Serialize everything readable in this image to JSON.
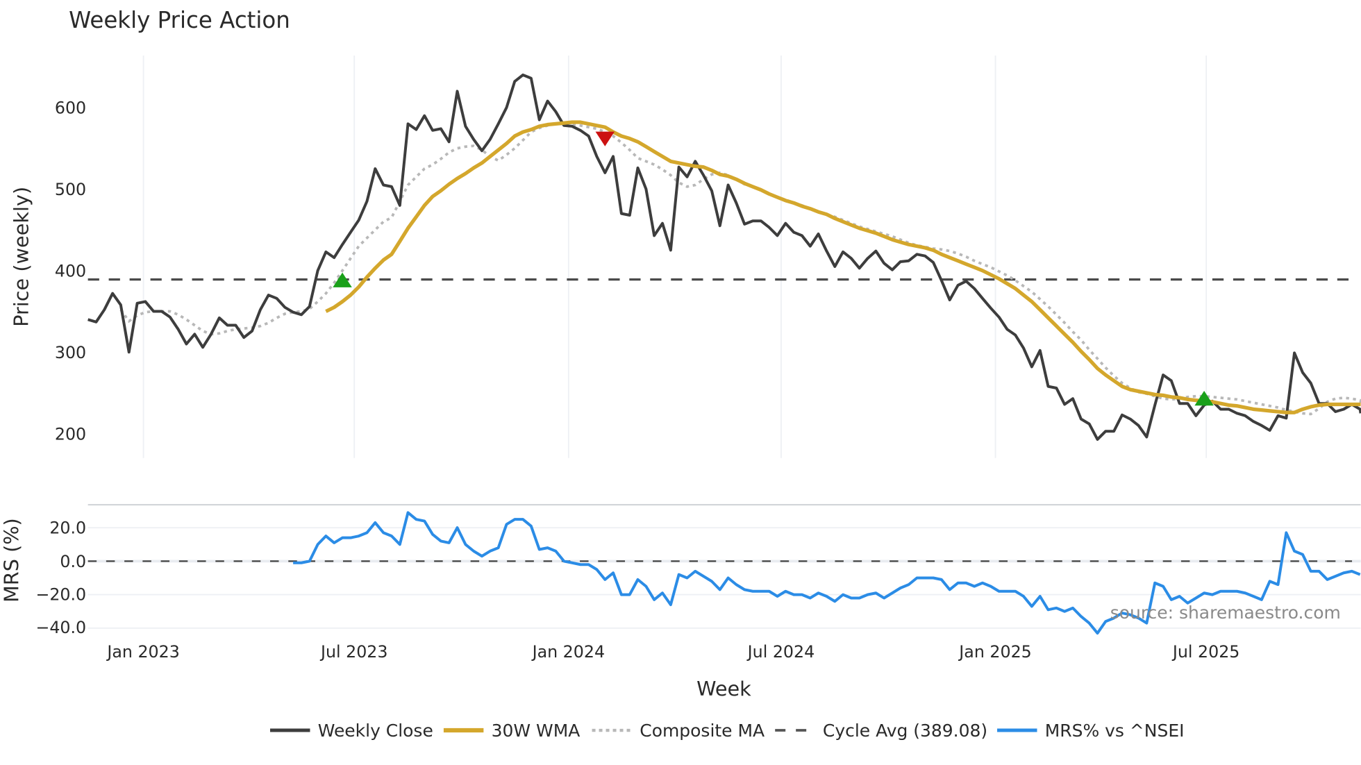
{
  "chart_title": "Weekly Price Action",
  "price_panel": {
    "ylabel": "Price (weekly)",
    "yticks": [
      "200",
      "300",
      "400",
      "500",
      "600"
    ],
    "ytick_values": [
      200,
      300,
      400,
      500,
      600
    ]
  },
  "mrs_panel": {
    "ylabel": "MRS (%)",
    "yticks": [
      "20.0",
      "0.0",
      "−20.0",
      "−40.0"
    ],
    "ytick_values": [
      20,
      0,
      -20,
      -40
    ]
  },
  "xaxis": {
    "label": "Week",
    "ticks": [
      "Jan 2023",
      "Jul 2023",
      "Jan 2024",
      "Jul 2024",
      "Jan 2025",
      "Jul 2025"
    ]
  },
  "legend": [
    {
      "label": "Weekly Close",
      "style": "solid",
      "color": "#3d3d3d"
    },
    {
      "label": "30W WMA",
      "style": "solid-thick",
      "color": "#d4a72c"
    },
    {
      "label": "Composite MA",
      "style": "dotted",
      "color": "#b8b8b8"
    },
    {
      "label": "Cycle Avg (389.08)",
      "style": "dashed",
      "color": "#555555"
    },
    {
      "label": "MRS% vs ^NSEI",
      "style": "solid",
      "color": "#2b8ce6"
    }
  ],
  "source_text": "source: sharemaestro.com",
  "colors": {
    "close": "#3d3d3d",
    "wma": "#d4a72c",
    "composite": "#b8b8b8",
    "cycle": "#4a4a4a",
    "mrs": "#2b8ce6",
    "buy_marker": "#1aa01a",
    "sell_marker": "#cc1111",
    "grid": "#eef0f4"
  },
  "chart_data": {
    "type": "line",
    "title": "Weekly Price Action",
    "xlabel": "Week",
    "ylabel": "Price (weekly)",
    "ylim": [
      170,
      660
    ],
    "x_tick_labels": [
      "Jan 2023",
      "Jul 2023",
      "Jan 2024",
      "Jul 2024",
      "Jan 2025",
      "Jul 2025"
    ],
    "x_range_weeks_note": "weekly points from ~Nov 2022 to ~Oct 2025",
    "cycle_avg": 389.08,
    "series": [
      {
        "name": "Weekly Close",
        "values": [
          340,
          337,
          352,
          372,
          358,
          300,
          360,
          362,
          350,
          350,
          343,
          328,
          310,
          322,
          306,
          322,
          342,
          333,
          333,
          318,
          326,
          352,
          370,
          366,
          355,
          349,
          346,
          356,
          400,
          423,
          416,
          432,
          447,
          462,
          485,
          525,
          505,
          503,
          480,
          580,
          573,
          590,
          572,
          574,
          558,
          620,
          577,
          561,
          547,
          561,
          580,
          600,
          632,
          640,
          636,
          585,
          608,
          595,
          578,
          577,
          572,
          565,
          540,
          520,
          540,
          470,
          468,
          526,
          500,
          443,
          458,
          425,
          527,
          515,
          534,
          517,
          498,
          455,
          505,
          483,
          457,
          461,
          461,
          453,
          443,
          458,
          447,
          443,
          430,
          445,
          424,
          405,
          423,
          415,
          403,
          415,
          424,
          409,
          401,
          411,
          412,
          420,
          418,
          410,
          388,
          364,
          382,
          387,
          378,
          366,
          354,
          343,
          328,
          321,
          305,
          282,
          302,
          258,
          256,
          236,
          243,
          218,
          212,
          193,
          203,
          203,
          223,
          218,
          210,
          196,
          235,
          272,
          265,
          237,
          237,
          222,
          235,
          240,
          230,
          230,
          225,
          222,
          215,
          210,
          204,
          222,
          219,
          299,
          275,
          262,
          237,
          237,
          227,
          230,
          236,
          230,
          225
        ]
      },
      {
        "name": "30W WMA",
        "start_index": 29,
        "values": [
          350,
          355,
          362,
          370,
          380,
          392,
          403,
          413,
          420,
          436,
          452,
          466,
          480,
          491,
          498,
          506,
          513,
          519,
          526,
          532,
          540,
          548,
          556,
          565,
          570,
          573,
          577,
          579,
          580,
          581,
          582,
          582,
          580,
          578,
          576,
          570,
          565,
          562,
          558,
          552,
          546,
          540,
          534,
          532,
          530,
          528,
          527,
          523,
          518,
          516,
          512,
          507,
          503,
          499,
          494,
          490,
          486,
          483,
          479,
          476,
          472,
          469,
          464,
          460,
          456,
          452,
          449,
          446,
          442,
          438,
          435,
          432,
          430,
          428,
          425,
          420,
          416,
          412,
          408,
          404,
          400,
          395,
          390,
          384,
          378,
          370,
          362,
          352,
          342,
          332,
          322,
          312,
          301,
          291,
          280,
          272,
          265,
          258,
          254,
          252,
          250,
          248,
          247,
          245,
          244,
          242,
          241,
          240,
          239,
          237,
          235,
          234,
          232,
          230,
          229,
          228,
          227,
          226,
          226,
          230,
          233,
          235,
          236,
          236,
          236,
          236,
          236,
          236,
          236,
          236
        ]
      },
      {
        "name": "Composite MA",
        "start_index": 4,
        "values": [
          352,
          338,
          345,
          349,
          350,
          350,
          350,
          346,
          340,
          333,
          326,
          322,
          323,
          326,
          328,
          329,
          330,
          332,
          336,
          342,
          347,
          349,
          350,
          353,
          362,
          372,
          385,
          400,
          415,
          430,
          440,
          450,
          460,
          465,
          485,
          505,
          515,
          525,
          530,
          537,
          545,
          550,
          552,
          553,
          548,
          540,
          535,
          542,
          550,
          560,
          570,
          575,
          578,
          580,
          580,
          579,
          578,
          576,
          574,
          570,
          565,
          557,
          548,
          538,
          534,
          530,
          524,
          517,
          508,
          503,
          505,
          512,
          518,
          520,
          517,
          512,
          506,
          503,
          499,
          494,
          490,
          487,
          483,
          480,
          476,
          472,
          469,
          466,
          462,
          458,
          454,
          451,
          448,
          445,
          442,
          438,
          434,
          431,
          429,
          427,
          426,
          424,
          421,
          417,
          412,
          408,
          404,
          399,
          394,
          388,
          381,
          374,
          365,
          356,
          346,
          336,
          325,
          315,
          303,
          292,
          281,
          271,
          262,
          256,
          251,
          249,
          246,
          243,
          242,
          243,
          245,
          246,
          246,
          245,
          244,
          243,
          242,
          240,
          238,
          236,
          234,
          232,
          229,
          227,
          225,
          224,
          231,
          239,
          243,
          244,
          243,
          241,
          240,
          238,
          237,
          236
        ]
      },
      {
        "name": "MRS% vs ^NSEI",
        "axis": "MRS (%)",
        "ylim": [
          -45,
          32
        ],
        "start_index": 25,
        "values": [
          -1,
          -1,
          0,
          10,
          15,
          11,
          14,
          14,
          15,
          17,
          23,
          17,
          15,
          10,
          29,
          25,
          24,
          16,
          12,
          11,
          20,
          10,
          6,
          3,
          6,
          8,
          22,
          25,
          25,
          21,
          7,
          8,
          6,
          0,
          -1,
          -2,
          -2,
          -5,
          -11,
          -7,
          -20,
          -20,
          -11,
          -15,
          -23,
          -19,
          -26,
          -8,
          -10,
          -6,
          -9,
          -12,
          -17,
          -10,
          -14,
          -17,
          -18,
          -18,
          -18,
          -21,
          -18,
          -20,
          -20,
          -22,
          -19,
          -21,
          -24,
          -20,
          -22,
          -22,
          -20,
          -19,
          -22,
          -19,
          -16,
          -14,
          -10,
          -10,
          -10,
          -11,
          -17,
          -13,
          -13,
          -15,
          -13,
          -15,
          -18,
          -18,
          -18,
          -21,
          -27,
          -21,
          -29,
          -28,
          -30,
          -28,
          -33,
          -37,
          -43,
          -36,
          -34,
          -31,
          -32,
          -34,
          -37,
          -13,
          -15,
          -23,
          -21,
          -25,
          -22,
          -19,
          -20,
          -18,
          -18,
          -18,
          -19,
          -21,
          -23,
          -12,
          -14,
          17,
          6,
          4,
          -6,
          -6,
          -11,
          -9,
          -7,
          -6,
          -8
        ]
      }
    ],
    "markers": [
      {
        "type": "buy",
        "shape": "triangle-up",
        "x_index": 31,
        "y": 388
      },
      {
        "type": "sell",
        "shape": "triangle-down",
        "x_index": 63,
        "y": 562
      },
      {
        "type": "buy",
        "shape": "triangle-up",
        "x_index": 136,
        "y": 243
      }
    ]
  }
}
